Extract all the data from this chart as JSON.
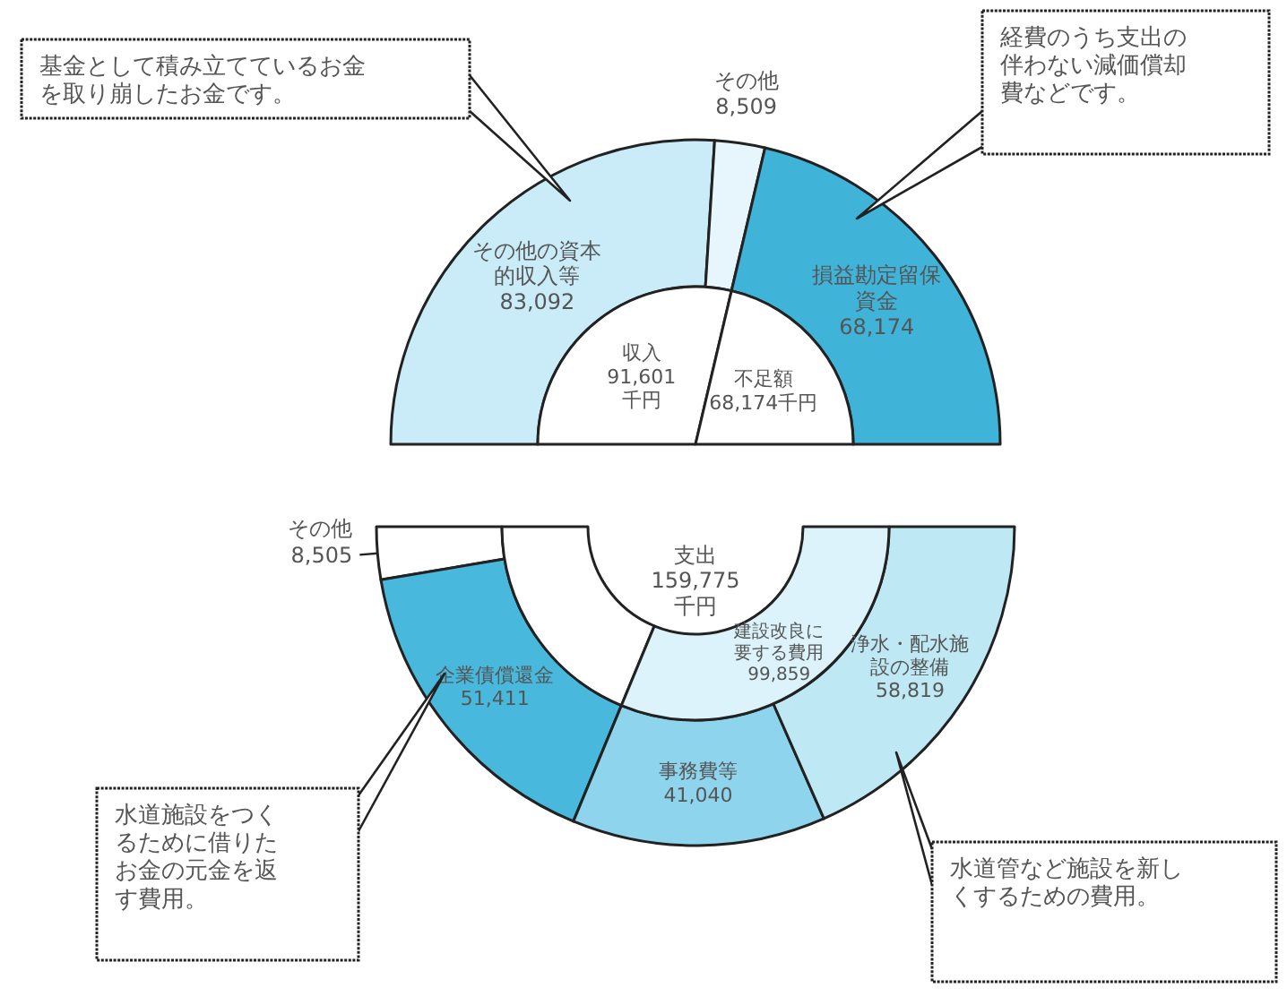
{
  "chart_data": [
    {
      "type": "donut",
      "categories": [
        "その他の資本的収入等",
        "その他",
        "損益勘定留保資金"
      ],
      "values": [
        83092,
        8509,
        68174
      ],
      "colors": [
        "#c9ecf8",
        "#e6f6fc",
        "#3fb3d8"
      ],
      "value_labels": [
        "83,092",
        "8,509",
        "68,174"
      ],
      "annotations": [
        "基金として積み立てているお金を取り崩したお金です。",
        "経費のうち支出の伴わない減価償却費などです。"
      ]
    },
    {
      "type": "pie",
      "categories": [
        "収入",
        "不足額"
      ],
      "values": [
        91601,
        68174
      ],
      "colors": [
        "#ffffff",
        "#ffffff"
      ],
      "value_labels": [
        "91,601 千円",
        "68,174千円"
      ]
    },
    {
      "type": "donut",
      "categories": [
        "その他",
        "企業債償還金",
        "事務費等",
        "浄水・配水施設の整備"
      ],
      "values": [
        8505,
        51411,
        41040,
        58819
      ],
      "colors": [
        "#ffffff",
        "#48b9dd",
        "#8ed4ec",
        "#bfe8f5"
      ],
      "value_labels": [
        "8,505",
        "51,411",
        "41,040",
        "58,819"
      ],
      "annotations": [
        "支出 159,775 千円",
        "水道施設をつくるために借りたお金の元金を返す費用。",
        "水道管など施設を新しくするための費用。"
      ]
    },
    {
      "type": "donut",
      "categories": [
        null,
        "建設改良に要する費用"
      ],
      "values": [
        59916,
        99859
      ],
      "colors": [
        "#ffffff",
        "#dcf3fb"
      ],
      "value_labels": [
        null,
        "99,859"
      ]
    }
  ]
}
